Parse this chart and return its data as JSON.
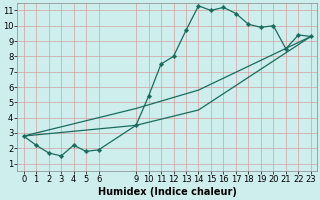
{
  "xlabel": "Humidex (Indice chaleur)",
  "bg_color": "#cdeeed",
  "grid_color": "#d4a0a0",
  "line_color": "#1a6b5e",
  "xlim": [
    -0.5,
    23.5
  ],
  "ylim": [
    0.5,
    11.5
  ],
  "xticks": [
    0,
    1,
    2,
    3,
    4,
    5,
    6,
    9,
    10,
    11,
    12,
    13,
    14,
    15,
    16,
    17,
    18,
    19,
    20,
    21,
    22,
    23
  ],
  "yticks": [
    1,
    2,
    3,
    4,
    5,
    6,
    7,
    8,
    9,
    10,
    11
  ],
  "line1_x": [
    0,
    1,
    2,
    3,
    4,
    5,
    6,
    9,
    10,
    11,
    12,
    13,
    14,
    15,
    16,
    17,
    18,
    19,
    20,
    21,
    22,
    23
  ],
  "line1_y": [
    2.8,
    2.2,
    1.7,
    1.5,
    2.2,
    1.8,
    1.9,
    3.5,
    5.4,
    7.5,
    8.0,
    9.7,
    11.3,
    11.0,
    11.2,
    10.8,
    10.1,
    9.9,
    10.0,
    8.5,
    9.4,
    9.3
  ],
  "line2_x": [
    0,
    23
  ],
  "line2_y": [
    2.8,
    9.3
  ],
  "line3_x": [
    0,
    23
  ],
  "line3_y": [
    2.8,
    9.3
  ],
  "tick_fontsize": 6,
  "xlabel_fontsize": 7
}
